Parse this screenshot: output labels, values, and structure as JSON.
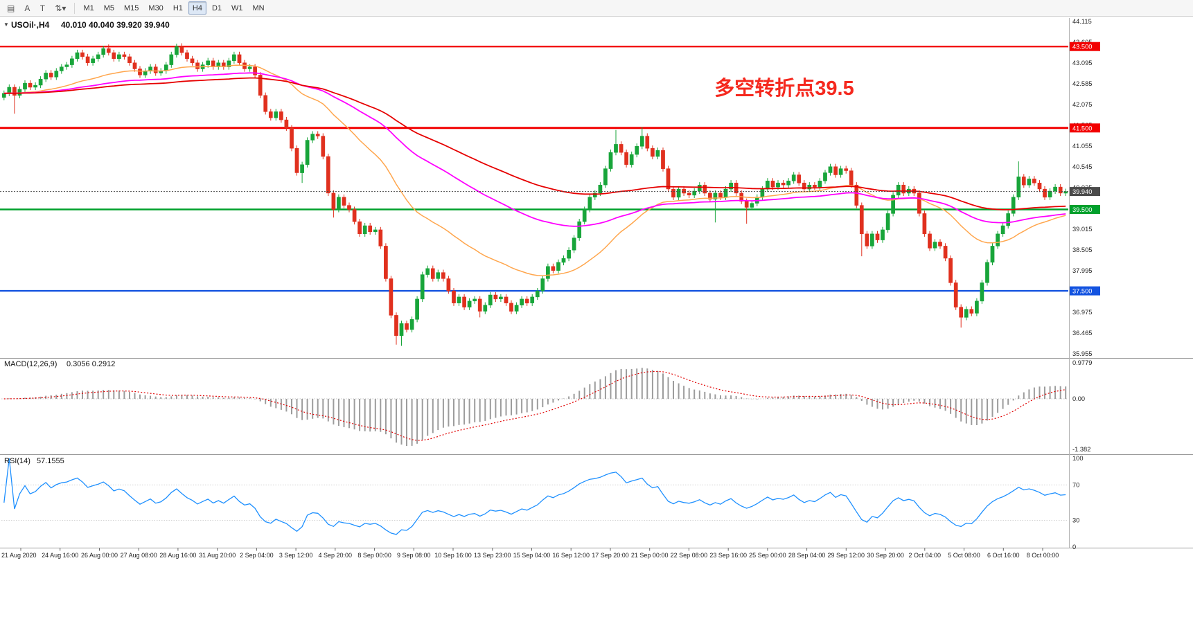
{
  "toolbar": {
    "left_buttons": [
      {
        "name": "chart-window-icon",
        "glyph": "▤"
      },
      {
        "name": "cursor-tool-icon",
        "glyph": "A"
      },
      {
        "name": "text-tool-icon",
        "glyph": "T"
      },
      {
        "name": "scale-dropdown-icon",
        "glyph": "⇅▾"
      }
    ],
    "timeframes": [
      {
        "label": "M1",
        "active": false
      },
      {
        "label": "M5",
        "active": false
      },
      {
        "label": "M15",
        "active": false
      },
      {
        "label": "M30",
        "active": false
      },
      {
        "label": "H1",
        "active": false
      },
      {
        "label": "H4",
        "active": true
      },
      {
        "label": "D1",
        "active": false
      },
      {
        "label": "W1",
        "active": false
      },
      {
        "label": "MN",
        "active": false
      }
    ]
  },
  "chart": {
    "header": {
      "collapse": "▼",
      "title": "USOil·,H4",
      "ohlc": "40.010 40.040 39.920 39.940"
    }
  },
  "panels": {
    "macd": {
      "label": "MACD(12,26,9)",
      "values": "0.3056 0.2912"
    },
    "rsi": {
      "label": "RSI(14)",
      "values": "57.1555"
    }
  },
  "chart_data": {
    "type": "candlestick",
    "symbol": "USOil",
    "timeframe": "H4",
    "title": "USOil,H4",
    "ohlc_current": {
      "open": 40.01,
      "high": 40.04,
      "low": 39.92,
      "close": 39.94
    },
    "annotation": {
      "text": "多空转折点39.5",
      "color": "#f5281e"
    },
    "y_axis": {
      "min": 35.955,
      "max": 44.115,
      "tick_step": 0.51,
      "ticks": [
        "44.115",
        "43.605",
        "43.095",
        "42.585",
        "42.075",
        "41.565",
        "41.055",
        "40.545",
        "40.035",
        "39.525",
        "39.015",
        "38.505",
        "37.995",
        "37.485",
        "36.975",
        "36.465",
        "35.955"
      ]
    },
    "x_axis": {
      "labels": [
        "21 Aug 2020",
        "24 Aug 16:00",
        "26 Aug 00:00",
        "27 Aug 08:00",
        "28 Aug 16:00",
        "31 Aug 20:00",
        "2 Sep 04:00",
        "3 Sep 12:00",
        "4 Sep 20:00",
        "8 Sep 00:00",
        "9 Sep 08:00",
        "10 Sep 16:00",
        "13 Sep 23:00",
        "15 Sep 04:00",
        "16 Sep 12:00",
        "17 Sep 20:00",
        "21 Sep 00:00",
        "22 Sep 08:00",
        "23 Sep 16:00",
        "25 Sep 00:00",
        "28 Sep 04:00",
        "29 Sep 12:00",
        "30 Sep 20:00",
        "2 Oct 04:00",
        "5 Oct 08:00",
        "6 Oct 16:00",
        "8 Oct 00:00"
      ]
    },
    "horizontal_lines": [
      {
        "value": 43.5,
        "label": "43.500",
        "color": "#f20000",
        "width": 2.4
      },
      {
        "value": 41.5,
        "label": "41.500",
        "color": "#f20000",
        "width": 3
      },
      {
        "value": 39.5,
        "label": "39.500",
        "color": "#00a02c",
        "width": 2.4
      },
      {
        "value": 37.5,
        "label": "37.500",
        "color": "#1353e0",
        "width": 2.4
      }
    ],
    "bid_line": {
      "value": 39.94,
      "label": "39.940",
      "color": "#4a4a4a"
    },
    "candles": {
      "up_color": "#18a53a",
      "down_color": "#e0301e",
      "default_wick": 0.07,
      "open0": 42.25,
      "closes": [
        42.35,
        42.5,
        42.3,
        42.45,
        42.6,
        42.5,
        42.55,
        42.7,
        42.85,
        42.75,
        42.9,
        43.0,
        43.05,
        43.2,
        43.35,
        43.25,
        43.1,
        43.2,
        43.3,
        43.45,
        43.35,
        43.2,
        43.3,
        43.25,
        43.1,
        42.95,
        42.8,
        42.9,
        43.0,
        42.85,
        42.9,
        43.05,
        43.3,
        43.5,
        43.35,
        43.2,
        43.1,
        42.95,
        43.05,
        43.15,
        43.0,
        43.1,
        43.0,
        43.15,
        43.3,
        43.1,
        42.95,
        43.0,
        42.8,
        42.3,
        41.9,
        41.75,
        41.9,
        41.7,
        41.5,
        41.0,
        40.4,
        40.6,
        41.2,
        41.35,
        41.3,
        40.8,
        39.9,
        39.5,
        39.8,
        39.6,
        39.5,
        39.2,
        38.9,
        39.1,
        38.95,
        39.0,
        38.6,
        37.8,
        36.9,
        36.4,
        36.7,
        36.55,
        36.8,
        37.3,
        37.9,
        38.05,
        37.8,
        37.95,
        37.8,
        37.5,
        37.2,
        37.35,
        37.1,
        37.25,
        37.3,
        37.0,
        37.15,
        37.4,
        37.3,
        37.35,
        37.2,
        37.0,
        37.15,
        37.3,
        37.2,
        37.35,
        37.5,
        37.8,
        38.1,
        38.0,
        38.2,
        38.3,
        38.5,
        38.8,
        39.2,
        39.5,
        39.8,
        39.9,
        40.1,
        40.5,
        40.9,
        41.1,
        40.9,
        40.6,
        40.85,
        41.05,
        41.3,
        41.0,
        40.8,
        40.95,
        40.5,
        40.0,
        39.8,
        40.0,
        39.9,
        39.85,
        39.95,
        40.1,
        39.9,
        39.75,
        39.9,
        39.8,
        40.0,
        40.15,
        39.9,
        39.7,
        39.55,
        39.65,
        39.8,
        40.0,
        40.2,
        40.05,
        40.15,
        40.1,
        40.2,
        40.35,
        40.15,
        40.0,
        40.1,
        40.05,
        40.2,
        40.4,
        40.55,
        40.35,
        40.5,
        40.45,
        40.1,
        39.6,
        38.9,
        38.6,
        38.9,
        38.75,
        39.0,
        39.4,
        39.85,
        40.1,
        39.9,
        40.0,
        39.9,
        39.4,
        38.9,
        38.55,
        38.7,
        38.6,
        38.3,
        37.7,
        37.1,
        36.85,
        37.05,
        36.95,
        37.25,
        37.7,
        38.2,
        38.6,
        38.9,
        39.1,
        39.4,
        39.8,
        40.3,
        40.1,
        40.25,
        40.15,
        40.0,
        39.8,
        39.95,
        40.05,
        39.9,
        39.94
      ],
      "wick_overrides": {
        "2": [
          null,
          41.85
        ],
        "20": [
          43.55,
          null
        ],
        "34": [
          43.58,
          null
        ],
        "57": [
          null,
          40.15
        ],
        "63": [
          null,
          39.3
        ],
        "75": [
          null,
          36.18
        ],
        "76": [
          null,
          36.15
        ],
        "91": [
          null,
          36.85
        ],
        "117": [
          41.45,
          null
        ],
        "122": [
          41.52,
          null
        ],
        "136": [
          null,
          39.18
        ],
        "142": [
          null,
          39.15
        ],
        "164": [
          null,
          38.35
        ],
        "183": [
          null,
          36.6
        ],
        "194": [
          40.68,
          null
        ]
      }
    },
    "moving_averages": [
      {
        "period": 34,
        "color": "#ffa64d",
        "width": 1.5
      },
      {
        "period": 76,
        "color": "#ff00ff",
        "width": 1.8
      },
      {
        "period": 120,
        "color": "#e60000",
        "width": 1.8
      }
    ],
    "macd": {
      "params": "12,26,9",
      "fast": 12,
      "slow": 26,
      "signal": 9,
      "display_values": [
        0.3056,
        0.2912
      ],
      "axis_values": [
        0.9779,
        0,
        -1.382
      ],
      "axis_ticks": [
        "0.9779",
        "0.00",
        "-1.382"
      ],
      "hist_color": "#9c9c9c",
      "signal_color": "#e00000"
    },
    "rsi": {
      "period": 14,
      "display_value": 57.1555,
      "levels": [
        70,
        30
      ],
      "axis_values": [
        100,
        70,
        30,
        0
      ],
      "axis_ticks": [
        "100",
        "70",
        "30",
        "0"
      ],
      "line_color": "#1E90FF"
    }
  }
}
